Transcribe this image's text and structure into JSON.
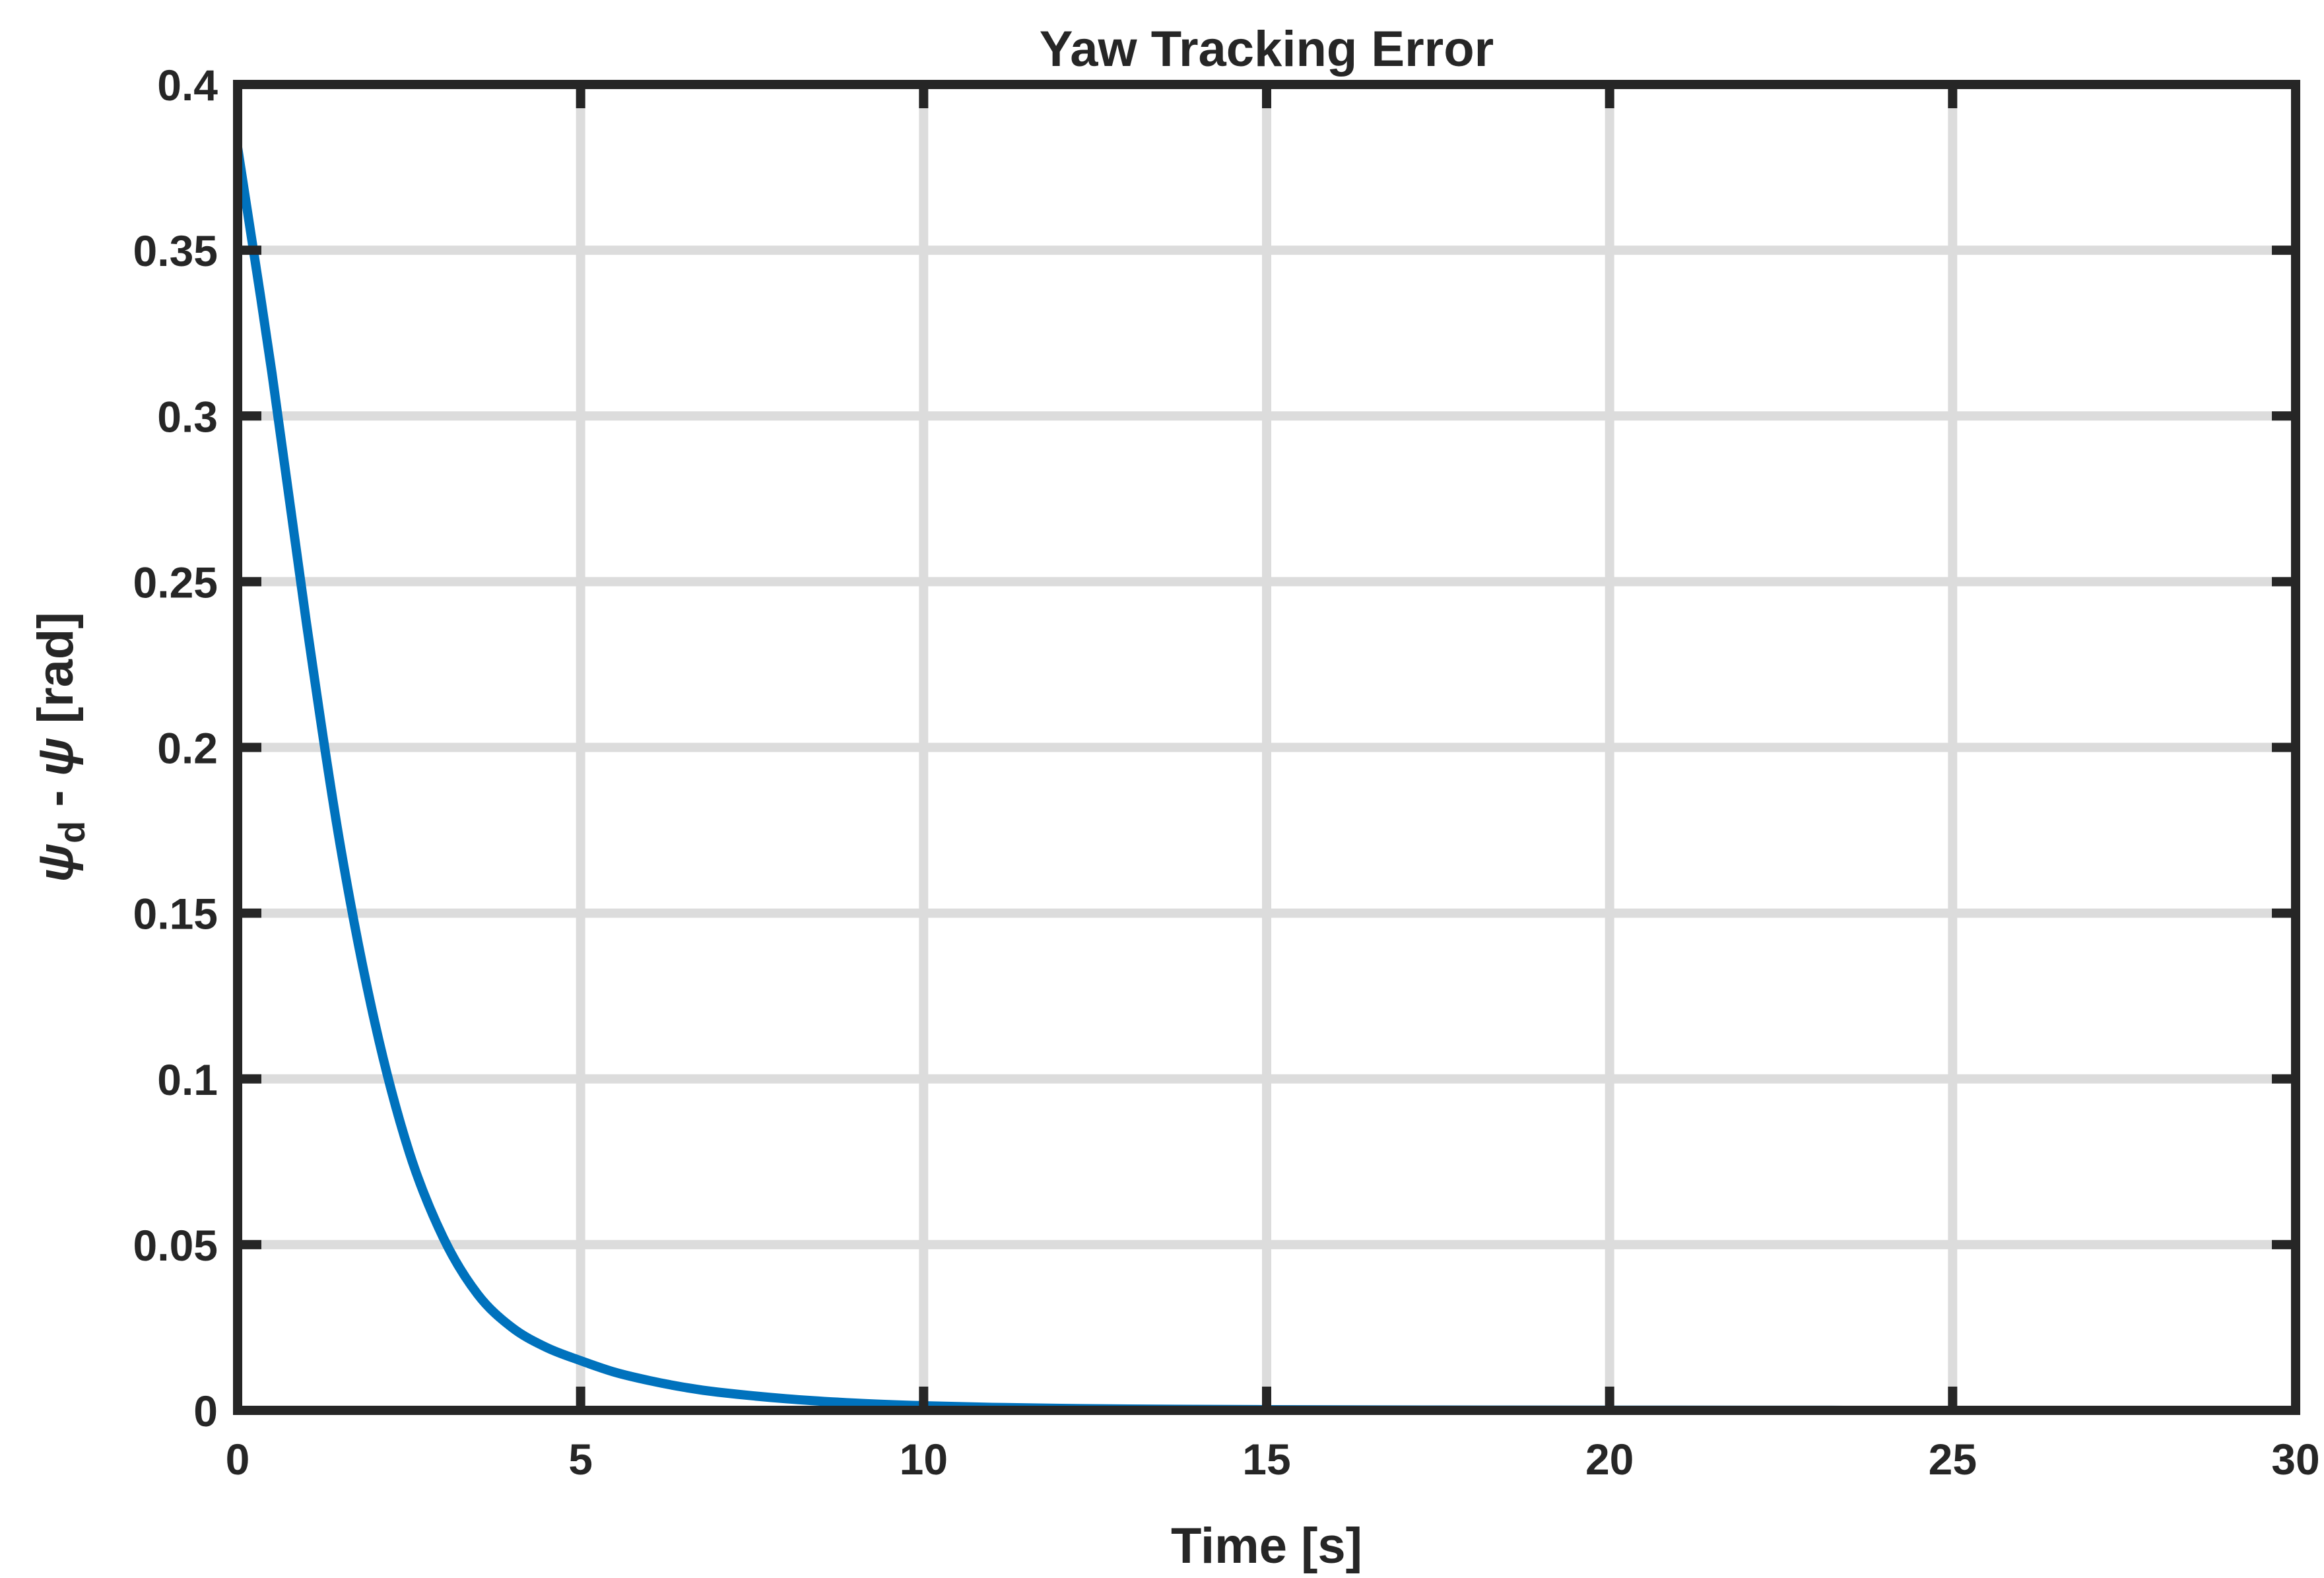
{
  "chart_data": {
    "type": "line",
    "title": "Yaw Tracking Error",
    "xlabel": "Time [s]",
    "ylabel": {
      "psi_symbol": "ψ",
      "subscript": "d",
      "minus": " - ",
      "unit": " [rad]"
    },
    "xlim": [
      0,
      30
    ],
    "ylim": [
      0,
      0.4
    ],
    "x_ticks": [
      0,
      5,
      10,
      15,
      20,
      25,
      30
    ],
    "x_tick_labels": [
      "0",
      "5",
      "10",
      "15",
      "20",
      "25",
      "30"
    ],
    "y_ticks": [
      0,
      0.05,
      0.1,
      0.15,
      0.2,
      0.25,
      0.3,
      0.35,
      0.4
    ],
    "y_tick_labels": [
      "0",
      "0.05",
      "0.1",
      "0.15",
      "0.2",
      "0.25",
      "0.3",
      "0.35",
      "0.4"
    ],
    "grid": true,
    "legend": "none",
    "series": [
      {
        "color": "#0072bd",
        "x": [
          0,
          0.5,
          1.0,
          1.5,
          2.0,
          2.5,
          3.0,
          3.5,
          4.0,
          4.5,
          5.0,
          5.5,
          6.0,
          6.5,
          7.0,
          8.0,
          9.0,
          10.0,
          11.0,
          12.0,
          13.0,
          15.0,
          17.5,
          20.0,
          25.0,
          30.0
        ],
        "y": [
          0.381,
          0.313,
          0.238,
          0.17,
          0.117,
          0.078,
          0.052,
          0.035,
          0.025,
          0.019,
          0.015,
          0.0115,
          0.009,
          0.007,
          0.0055,
          0.0035,
          0.0022,
          0.0014,
          0.0009,
          0.0006,
          0.0004,
          0.0002,
          0.0001,
          5e-05,
          0.0,
          0.0
        ]
      }
    ]
  }
}
